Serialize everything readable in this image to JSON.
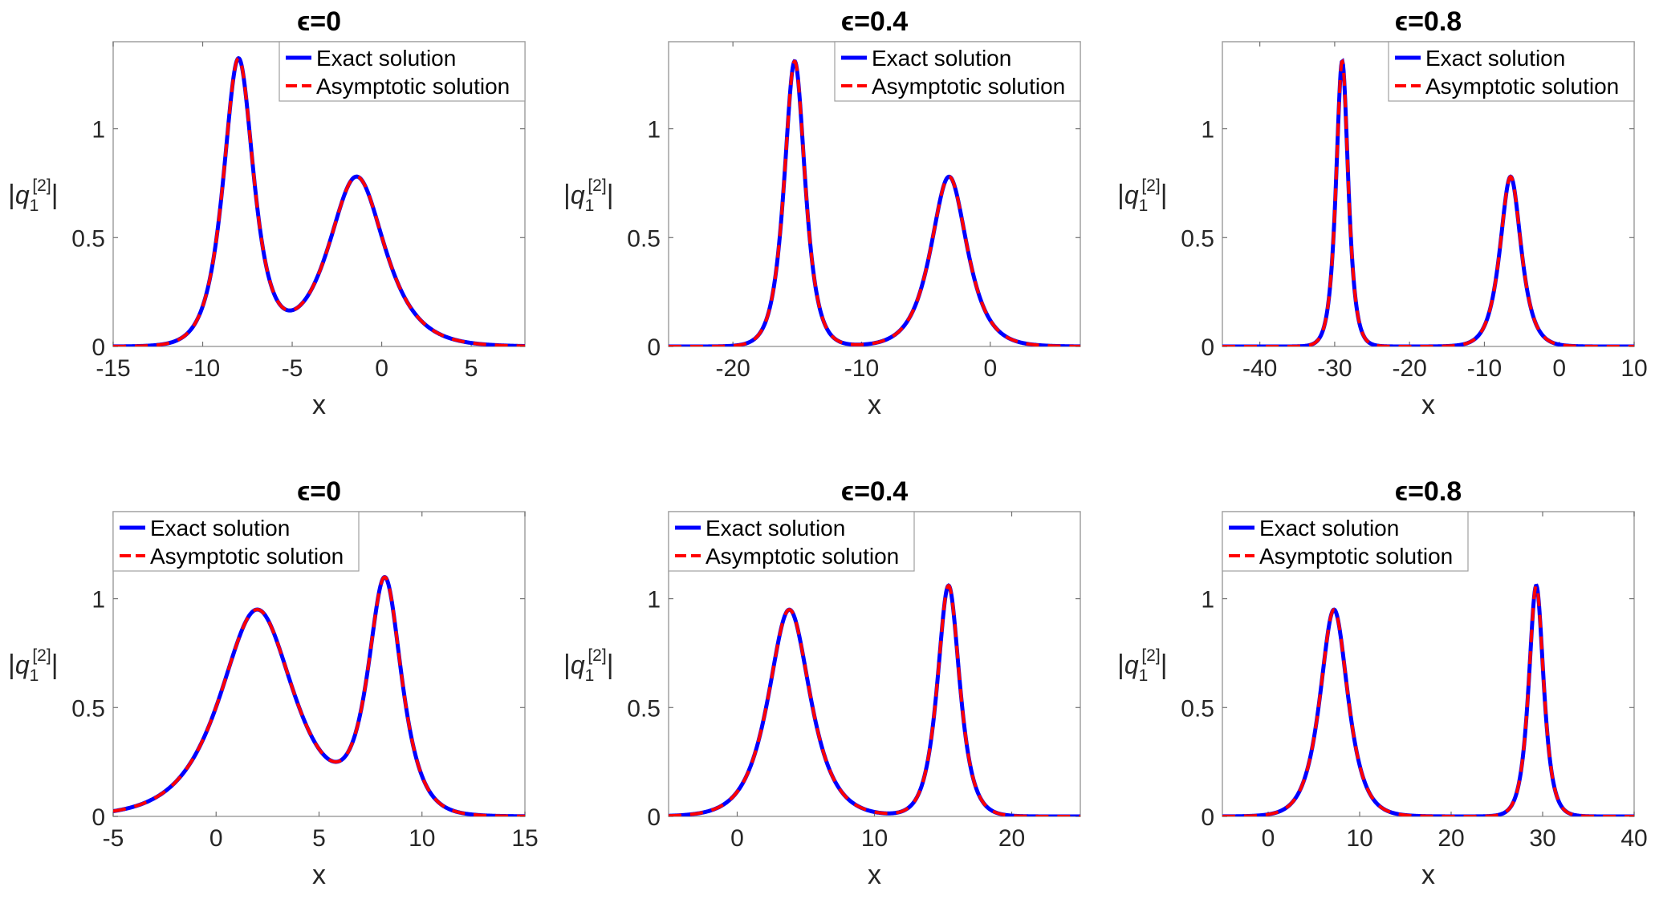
{
  "chart_data": [
    {
      "type": "line",
      "title": "ϵ=0",
      "xlabel": "x",
      "ylabel": "|q1^[2]|",
      "xlim": [
        -15,
        8
      ],
      "ylim": [
        0,
        1.4
      ],
      "xticks": [
        -15,
        -10,
        -5,
        0,
        5
      ],
      "xtick_labels": [
        "-15",
        "-10",
        "-5",
        "0",
        "5"
      ],
      "yticks": [
        0,
        0.5,
        1
      ],
      "ytick_labels": [
        "0",
        "0.5",
        "1"
      ],
      "legend": [
        "Exact solution",
        "Asymptotic solution"
      ],
      "legend_position": "top-right",
      "peaks": [
        {
          "center": -8.0,
          "height": 1.31,
          "width": 0.75
        },
        {
          "center": -1.4,
          "height": 0.78,
          "width": 1.4
        }
      ],
      "series": [
        {
          "name": "Exact solution",
          "color": "#0000ff",
          "style": "solid"
        },
        {
          "name": "Asymptotic solution",
          "color": "#ff0000",
          "style": "dashed"
        }
      ]
    },
    {
      "type": "line",
      "title": "ϵ=0.4",
      "xlabel": "x",
      "ylabel": "|q1^[2]|",
      "xlim": [
        -25,
        7
      ],
      "ylim": [
        0,
        1.4
      ],
      "xticks": [
        -20,
        -10,
        0
      ],
      "xtick_labels": [
        "-20",
        "-10",
        "0"
      ],
      "yticks": [
        0,
        0.5,
        1
      ],
      "ytick_labels": [
        "0",
        "0.5",
        "1"
      ],
      "legend": [
        "Exact solution",
        "Asymptotic solution"
      ],
      "legend_position": "top-right",
      "peaks": [
        {
          "center": -15.2,
          "height": 1.31,
          "width": 0.72
        },
        {
          "center": -3.2,
          "height": 0.78,
          "width": 1.25
        }
      ],
      "series": [
        {
          "name": "Exact solution",
          "color": "#0000ff",
          "style": "solid"
        },
        {
          "name": "Asymptotic solution",
          "color": "#ff0000",
          "style": "dashed"
        }
      ]
    },
    {
      "type": "line",
      "title": "ϵ=0.8",
      "xlabel": "x",
      "ylabel": "|q1^[2]|",
      "xlim": [
        -45,
        10
      ],
      "ylim": [
        0,
        1.4
      ],
      "xticks": [
        -40,
        -30,
        -20,
        -10,
        0,
        10
      ],
      "xtick_labels": [
        "-40",
        "-30",
        "-20",
        "-10",
        "0",
        "10"
      ],
      "yticks": [
        0,
        0.5,
        1
      ],
      "ytick_labels": [
        "0",
        "0.5",
        "1"
      ],
      "legend": [
        "Exact solution",
        "Asymptotic solution"
      ],
      "legend_position": "top-right",
      "peaks": [
        {
          "center": -29.0,
          "height": 1.31,
          "width": 0.72
        },
        {
          "center": -6.5,
          "height": 0.78,
          "width": 1.25
        }
      ],
      "series": [
        {
          "name": "Exact solution",
          "color": "#0000ff",
          "style": "solid"
        },
        {
          "name": "Asymptotic solution",
          "color": "#ff0000",
          "style": "dashed"
        }
      ]
    },
    {
      "type": "line",
      "title": "ϵ=0",
      "xlabel": "x",
      "ylabel": "|q1^[2]|",
      "xlim": [
        -5,
        15
      ],
      "ylim": [
        0,
        1.4
      ],
      "xticks": [
        -5,
        0,
        5,
        10,
        15
      ],
      "xtick_labels": [
        "-5",
        "0",
        "5",
        "10",
        "15"
      ],
      "yticks": [
        0,
        0.5,
        1
      ],
      "ytick_labels": [
        "0",
        "0.5",
        "1"
      ],
      "legend": [
        "Exact solution",
        "Asymptotic solution"
      ],
      "legend_position": "top-left",
      "peaks": [
        {
          "center": 2.0,
          "height": 0.95,
          "width": 1.6
        },
        {
          "center": 8.2,
          "height": 1.06,
          "width": 0.72
        }
      ],
      "series": [
        {
          "name": "Exact solution",
          "color": "#0000ff",
          "style": "solid"
        },
        {
          "name": "Asymptotic solution",
          "color": "#ff0000",
          "style": "dashed"
        }
      ]
    },
    {
      "type": "line",
      "title": "ϵ=0.4",
      "xlabel": "x",
      "ylabel": "|q1^[2]|",
      "xlim": [
        -5,
        25
      ],
      "ylim": [
        0,
        1.4
      ],
      "xticks": [
        0,
        10,
        20
      ],
      "xtick_labels": [
        "0",
        "10",
        "20"
      ],
      "yticks": [
        0,
        0.5,
        1
      ],
      "ytick_labels": [
        "0",
        "0.5",
        "1"
      ],
      "legend": [
        "Exact solution",
        "Asymptotic solution"
      ],
      "legend_position": "top-left",
      "peaks": [
        {
          "center": 3.8,
          "height": 0.95,
          "width": 1.35
        },
        {
          "center": 15.4,
          "height": 1.06,
          "width": 0.72
        }
      ],
      "series": [
        {
          "name": "Exact solution",
          "color": "#0000ff",
          "style": "solid"
        },
        {
          "name": "Asymptotic solution",
          "color": "#ff0000",
          "style": "dashed"
        }
      ]
    },
    {
      "type": "line",
      "title": "ϵ=0.8",
      "xlabel": "x",
      "ylabel": "|q1^[2]|",
      "xlim": [
        -5,
        40
      ],
      "ylim": [
        0,
        1.4
      ],
      "xticks": [
        0,
        10,
        20,
        30,
        40
      ],
      "xtick_labels": [
        "0",
        "10",
        "20",
        "30",
        "40"
      ],
      "yticks": [
        0,
        0.5,
        1
      ],
      "ytick_labels": [
        "0",
        "0.5",
        "1"
      ],
      "legend": [
        "Exact solution",
        "Asymptotic solution"
      ],
      "legend_position": "top-left",
      "peaks": [
        {
          "center": 7.2,
          "height": 0.95,
          "width": 1.35
        },
        {
          "center": 29.3,
          "height": 1.06,
          "width": 0.72
        }
      ],
      "series": [
        {
          "name": "Exact solution",
          "color": "#0000ff",
          "style": "solid"
        },
        {
          "name": "Asymptotic solution",
          "color": "#ff0000",
          "style": "dashed"
        }
      ]
    }
  ]
}
